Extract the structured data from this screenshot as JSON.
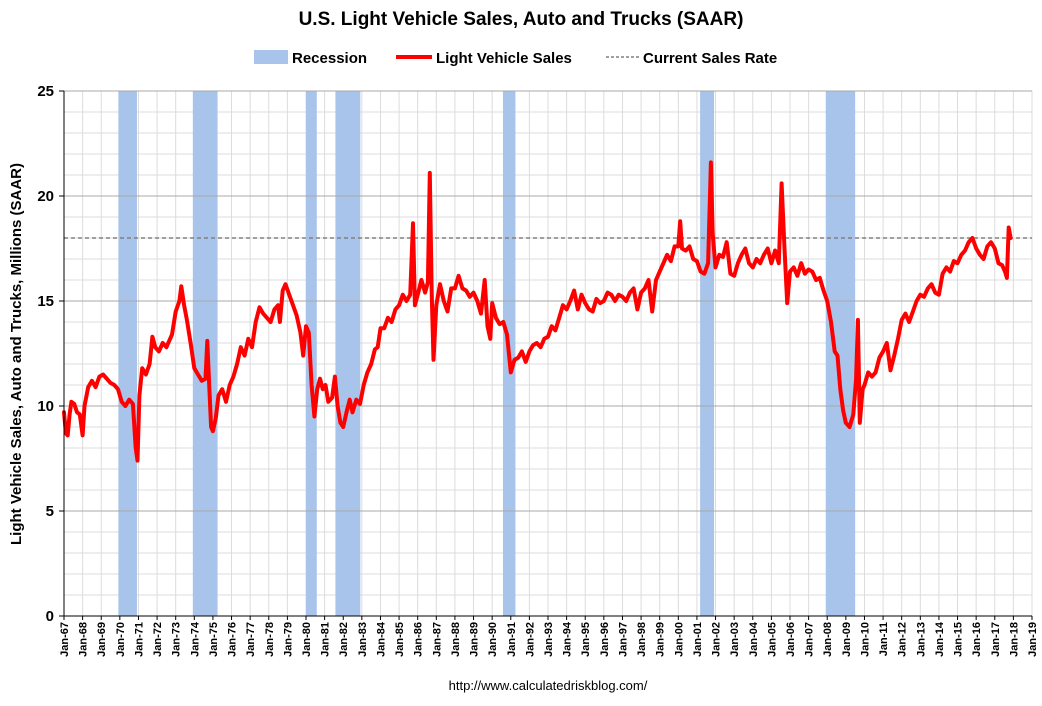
{
  "chart_data": {
    "type": "line",
    "title": "U.S. Light Vehicle Sales, Auto and Trucks (SAAR)",
    "ylabel": "Light Vehicle Sales, Auto and Trucks, Millions (SAAR)",
    "xlabel": "",
    "source": "http://www.calculatedriskblog.com/",
    "ylim": [
      0,
      25
    ],
    "yticks": [
      0,
      5,
      10,
      15,
      20,
      25
    ],
    "xlim": [
      1967,
      2019
    ],
    "x_tick_labels": [
      "Jan-67",
      "Jan-68",
      "Jan-69",
      "Jan-70",
      "Jan-71",
      "Jan-72",
      "Jan-73",
      "Jan-74",
      "Jan-75",
      "Jan-76",
      "Jan-77",
      "Jan-78",
      "Jan-79",
      "Jan-80",
      "Jan-81",
      "Jan-82",
      "Jan-83",
      "Jan-84",
      "Jan-85",
      "Jan-86",
      "Jan-87",
      "Jan-88",
      "Jan-89",
      "Jan-90",
      "Jan-91",
      "Jan-92",
      "Jan-93",
      "Jan-94",
      "Jan-95",
      "Jan-96",
      "Jan-97",
      "Jan-98",
      "Jan-99",
      "Jan-00",
      "Jan-01",
      "Jan-02",
      "Jan-03",
      "Jan-04",
      "Jan-05",
      "Jan-06",
      "Jan-07",
      "Jan-08",
      "Jan-09",
      "Jan-10",
      "Jan-11",
      "Jan-12",
      "Jan-13",
      "Jan-14",
      "Jan-15",
      "Jan-16",
      "Jan-17",
      "Jan-18",
      "Jan-19"
    ],
    "grid": true,
    "legend_position": "top",
    "legend": [
      {
        "name": "Recession",
        "kind": "band",
        "color": "#a9c4ea"
      },
      {
        "name": "Light Vehicle Sales",
        "kind": "line",
        "color": "#ff0000"
      },
      {
        "name": "Current Sales Rate",
        "kind": "dashed",
        "color": "#808080"
      }
    ],
    "recessions": [
      {
        "start": 1969.92,
        "end": 1970.92
      },
      {
        "start": 1973.92,
        "end": 1975.25
      },
      {
        "start": 1980.0,
        "end": 1980.58
      },
      {
        "start": 1981.58,
        "end": 1982.92
      },
      {
        "start": 1990.58,
        "end": 1991.25
      },
      {
        "start": 2001.17,
        "end": 2001.92
      },
      {
        "start": 2007.92,
        "end": 2009.5
      }
    ],
    "current_rate": 18.0,
    "series": [
      {
        "name": "Light Vehicle Sales",
        "color": "#ff0000",
        "points": [
          [
            1967.0,
            9.7
          ],
          [
            1967.1,
            8.7
          ],
          [
            1967.2,
            8.6
          ],
          [
            1967.3,
            9.6
          ],
          [
            1967.4,
            10.2
          ],
          [
            1967.55,
            10.1
          ],
          [
            1967.7,
            9.7
          ],
          [
            1967.85,
            9.6
          ],
          [
            1968.0,
            8.6
          ],
          [
            1968.1,
            10.0
          ],
          [
            1968.3,
            10.9
          ],
          [
            1968.5,
            11.2
          ],
          [
            1968.7,
            10.9
          ],
          [
            1968.9,
            11.4
          ],
          [
            1969.1,
            11.5
          ],
          [
            1969.3,
            11.3
          ],
          [
            1969.5,
            11.1
          ],
          [
            1969.7,
            11.0
          ],
          [
            1969.9,
            10.8
          ],
          [
            1970.1,
            10.2
          ],
          [
            1970.3,
            10.0
          ],
          [
            1970.5,
            10.3
          ],
          [
            1970.7,
            10.1
          ],
          [
            1970.85,
            8.0
          ],
          [
            1970.95,
            7.4
          ],
          [
            1971.05,
            10.5
          ],
          [
            1971.2,
            11.8
          ],
          [
            1971.4,
            11.5
          ],
          [
            1971.6,
            12.0
          ],
          [
            1971.75,
            13.3
          ],
          [
            1971.9,
            12.8
          ],
          [
            1972.1,
            12.6
          ],
          [
            1972.3,
            13.0
          ],
          [
            1972.5,
            12.8
          ],
          [
            1972.8,
            13.4
          ],
          [
            1973.0,
            14.5
          ],
          [
            1973.2,
            15.0
          ],
          [
            1973.3,
            15.7
          ],
          [
            1973.45,
            14.8
          ],
          [
            1973.6,
            14.1
          ],
          [
            1973.8,
            13.0
          ],
          [
            1974.0,
            11.8
          ],
          [
            1974.2,
            11.5
          ],
          [
            1974.4,
            11.2
          ],
          [
            1974.6,
            11.3
          ],
          [
            1974.7,
            13.1
          ],
          [
            1974.8,
            11.0
          ],
          [
            1974.9,
            9.0
          ],
          [
            1975.0,
            8.8
          ],
          [
            1975.15,
            9.4
          ],
          [
            1975.3,
            10.5
          ],
          [
            1975.5,
            10.8
          ],
          [
            1975.7,
            10.2
          ],
          [
            1975.9,
            11.0
          ],
          [
            1976.1,
            11.4
          ],
          [
            1976.3,
            12.0
          ],
          [
            1976.5,
            12.8
          ],
          [
            1976.7,
            12.4
          ],
          [
            1976.9,
            13.2
          ],
          [
            1977.1,
            12.8
          ],
          [
            1977.3,
            14.0
          ],
          [
            1977.5,
            14.7
          ],
          [
            1977.7,
            14.4
          ],
          [
            1977.9,
            14.2
          ],
          [
            1978.1,
            14.0
          ],
          [
            1978.3,
            14.6
          ],
          [
            1978.5,
            14.8
          ],
          [
            1978.6,
            14.0
          ],
          [
            1978.75,
            15.5
          ],
          [
            1978.9,
            15.8
          ],
          [
            1979.1,
            15.3
          ],
          [
            1979.3,
            14.8
          ],
          [
            1979.5,
            14.3
          ],
          [
            1979.7,
            13.5
          ],
          [
            1979.85,
            12.4
          ],
          [
            1980.0,
            13.8
          ],
          [
            1980.15,
            13.5
          ],
          [
            1980.3,
            11.0
          ],
          [
            1980.45,
            9.5
          ],
          [
            1980.6,
            10.8
          ],
          [
            1980.75,
            11.3
          ],
          [
            1980.9,
            10.8
          ],
          [
            1981.05,
            11.0
          ],
          [
            1981.2,
            10.2
          ],
          [
            1981.4,
            10.4
          ],
          [
            1981.55,
            11.4
          ],
          [
            1981.7,
            10.0
          ],
          [
            1981.85,
            9.2
          ],
          [
            1982.0,
            9.0
          ],
          [
            1982.2,
            9.8
          ],
          [
            1982.35,
            10.3
          ],
          [
            1982.5,
            9.7
          ],
          [
            1982.7,
            10.3
          ],
          [
            1982.9,
            10.1
          ],
          [
            1983.1,
            11.0
          ],
          [
            1983.3,
            11.6
          ],
          [
            1983.5,
            12.0
          ],
          [
            1983.7,
            12.7
          ],
          [
            1983.85,
            12.8
          ],
          [
            1984.0,
            13.7
          ],
          [
            1984.2,
            13.7
          ],
          [
            1984.4,
            14.2
          ],
          [
            1984.6,
            14.0
          ],
          [
            1984.8,
            14.6
          ],
          [
            1985.0,
            14.8
          ],
          [
            1985.2,
            15.3
          ],
          [
            1985.4,
            15.0
          ],
          [
            1985.6,
            15.3
          ],
          [
            1985.75,
            18.7
          ],
          [
            1985.85,
            14.8
          ],
          [
            1986.0,
            15.3
          ],
          [
            1986.2,
            16.0
          ],
          [
            1986.4,
            15.4
          ],
          [
            1986.55,
            15.9
          ],
          [
            1986.65,
            21.1
          ],
          [
            1986.75,
            15.4
          ],
          [
            1986.85,
            12.2
          ],
          [
            1987.0,
            14.8
          ],
          [
            1987.2,
            15.8
          ],
          [
            1987.4,
            15.0
          ],
          [
            1987.6,
            14.5
          ],
          [
            1987.8,
            15.6
          ],
          [
            1988.0,
            15.6
          ],
          [
            1988.2,
            16.2
          ],
          [
            1988.4,
            15.6
          ],
          [
            1988.6,
            15.5
          ],
          [
            1988.8,
            15.2
          ],
          [
            1989.0,
            15.4
          ],
          [
            1989.2,
            15.0
          ],
          [
            1989.4,
            14.4
          ],
          [
            1989.6,
            16.0
          ],
          [
            1989.75,
            13.8
          ],
          [
            1989.9,
            13.2
          ],
          [
            1990.0,
            14.9
          ],
          [
            1990.2,
            14.2
          ],
          [
            1990.4,
            13.9
          ],
          [
            1990.6,
            14.0
          ],
          [
            1990.8,
            13.4
          ],
          [
            1991.0,
            11.6
          ],
          [
            1991.2,
            12.2
          ],
          [
            1991.4,
            12.3
          ],
          [
            1991.6,
            12.6
          ],
          [
            1991.8,
            12.1
          ],
          [
            1992.0,
            12.6
          ],
          [
            1992.2,
            12.9
          ],
          [
            1992.4,
            13.0
          ],
          [
            1992.6,
            12.8
          ],
          [
            1992.8,
            13.2
          ],
          [
            1993.0,
            13.3
          ],
          [
            1993.2,
            13.8
          ],
          [
            1993.4,
            13.6
          ],
          [
            1993.6,
            14.2
          ],
          [
            1993.8,
            14.8
          ],
          [
            1994.0,
            14.6
          ],
          [
            1994.2,
            15.0
          ],
          [
            1994.4,
            15.5
          ],
          [
            1994.6,
            14.6
          ],
          [
            1994.8,
            15.3
          ],
          [
            1995.0,
            14.9
          ],
          [
            1995.2,
            14.6
          ],
          [
            1995.4,
            14.5
          ],
          [
            1995.6,
            15.1
          ],
          [
            1995.8,
            14.9
          ],
          [
            1996.0,
            15.0
          ],
          [
            1996.2,
            15.4
          ],
          [
            1996.4,
            15.3
          ],
          [
            1996.6,
            15.0
          ],
          [
            1996.8,
            15.3
          ],
          [
            1997.0,
            15.2
          ],
          [
            1997.2,
            15.0
          ],
          [
            1997.4,
            15.4
          ],
          [
            1997.6,
            15.6
          ],
          [
            1997.8,
            14.6
          ],
          [
            1998.0,
            15.4
          ],
          [
            1998.2,
            15.6
          ],
          [
            1998.4,
            16.0
          ],
          [
            1998.6,
            14.5
          ],
          [
            1998.8,
            16.0
          ],
          [
            1999.0,
            16.4
          ],
          [
            1999.2,
            16.8
          ],
          [
            1999.4,
            17.2
          ],
          [
            1999.6,
            16.9
          ],
          [
            1999.8,
            17.6
          ],
          [
            2000.0,
            17.6
          ],
          [
            2000.1,
            18.8
          ],
          [
            2000.2,
            17.5
          ],
          [
            2000.4,
            17.4
          ],
          [
            2000.6,
            17.6
          ],
          [
            2000.8,
            17.0
          ],
          [
            2001.0,
            16.9
          ],
          [
            2001.2,
            16.4
          ],
          [
            2001.4,
            16.3
          ],
          [
            2001.6,
            16.8
          ],
          [
            2001.75,
            21.6
          ],
          [
            2001.85,
            18.2
          ],
          [
            2002.0,
            16.6
          ],
          [
            2002.2,
            17.2
          ],
          [
            2002.4,
            17.1
          ],
          [
            2002.6,
            17.8
          ],
          [
            2002.8,
            16.3
          ],
          [
            2003.0,
            16.2
          ],
          [
            2003.2,
            16.8
          ],
          [
            2003.4,
            17.2
          ],
          [
            2003.6,
            17.5
          ],
          [
            2003.8,
            16.8
          ],
          [
            2004.0,
            16.6
          ],
          [
            2004.2,
            17.0
          ],
          [
            2004.4,
            16.8
          ],
          [
            2004.6,
            17.2
          ],
          [
            2004.8,
            17.5
          ],
          [
            2005.0,
            16.8
          ],
          [
            2005.2,
            17.4
          ],
          [
            2005.4,
            16.8
          ],
          [
            2005.55,
            20.6
          ],
          [
            2005.7,
            17.6
          ],
          [
            2005.85,
            14.9
          ],
          [
            2006.0,
            16.4
          ],
          [
            2006.2,
            16.6
          ],
          [
            2006.4,
            16.2
          ],
          [
            2006.6,
            16.8
          ],
          [
            2006.8,
            16.3
          ],
          [
            2007.0,
            16.5
          ],
          [
            2007.2,
            16.4
          ],
          [
            2007.4,
            16.0
          ],
          [
            2007.6,
            16.1
          ],
          [
            2007.8,
            15.5
          ],
          [
            2008.0,
            15.0
          ],
          [
            2008.2,
            14.0
          ],
          [
            2008.4,
            12.6
          ],
          [
            2008.55,
            12.4
          ],
          [
            2008.7,
            10.8
          ],
          [
            2008.85,
            9.8
          ],
          [
            2009.0,
            9.2
          ],
          [
            2009.2,
            9.0
          ],
          [
            2009.4,
            9.6
          ],
          [
            2009.55,
            11.3
          ],
          [
            2009.65,
            14.1
          ],
          [
            2009.75,
            9.2
          ],
          [
            2009.9,
            10.8
          ],
          [
            2010.0,
            11.0
          ],
          [
            2010.2,
            11.6
          ],
          [
            2010.4,
            11.4
          ],
          [
            2010.6,
            11.6
          ],
          [
            2010.8,
            12.3
          ],
          [
            2011.0,
            12.6
          ],
          [
            2011.2,
            13.0
          ],
          [
            2011.4,
            11.7
          ],
          [
            2011.6,
            12.4
          ],
          [
            2011.8,
            13.2
          ],
          [
            2012.0,
            14.1
          ],
          [
            2012.2,
            14.4
          ],
          [
            2012.4,
            14.0
          ],
          [
            2012.6,
            14.5
          ],
          [
            2012.8,
            15.0
          ],
          [
            2013.0,
            15.3
          ],
          [
            2013.2,
            15.2
          ],
          [
            2013.4,
            15.6
          ],
          [
            2013.6,
            15.8
          ],
          [
            2013.8,
            15.4
          ],
          [
            2014.0,
            15.3
          ],
          [
            2014.2,
            16.3
          ],
          [
            2014.4,
            16.6
          ],
          [
            2014.6,
            16.4
          ],
          [
            2014.8,
            16.9
          ],
          [
            2015.0,
            16.8
          ],
          [
            2015.2,
            17.2
          ],
          [
            2015.4,
            17.4
          ],
          [
            2015.6,
            17.8
          ],
          [
            2015.8,
            18.0
          ],
          [
            2016.0,
            17.5
          ],
          [
            2016.2,
            17.2
          ],
          [
            2016.4,
            17.0
          ],
          [
            2016.6,
            17.6
          ],
          [
            2016.8,
            17.8
          ],
          [
            2017.0,
            17.5
          ],
          [
            2017.2,
            16.8
          ],
          [
            2017.4,
            16.7
          ],
          [
            2017.55,
            16.4
          ],
          [
            2017.65,
            16.1
          ],
          [
            2017.75,
            18.5
          ],
          [
            2017.85,
            18.0
          ]
        ]
      }
    ]
  }
}
